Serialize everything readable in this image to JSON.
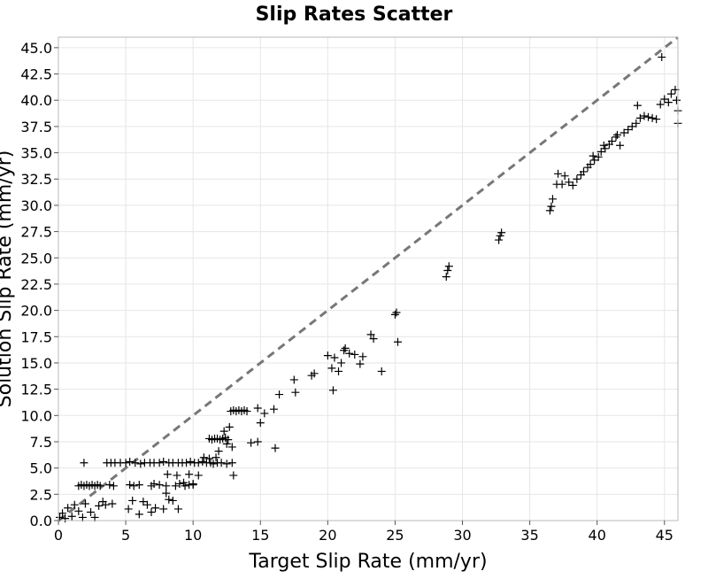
{
  "chart_data": {
    "type": "scatter",
    "title": "Slip Rates Scatter",
    "xlabel": "Target Slip Rate (mm/yr)",
    "ylabel": "Solution Slip Rate (mm/yr)",
    "xlim": [
      0,
      46
    ],
    "ylim": [
      0,
      46
    ],
    "x_ticks": [
      0,
      5,
      10,
      15,
      20,
      25,
      30,
      35,
      40,
      45
    ],
    "x_tick_labels": [
      "0",
      "5",
      "10",
      "15",
      "20",
      "25",
      "30",
      "35",
      "40",
      "45"
    ],
    "y_ticks": [
      0,
      2.5,
      5,
      7.5,
      10,
      12.5,
      15,
      17.5,
      20,
      22.5,
      25,
      27.5,
      30,
      32.5,
      35,
      37.5,
      40,
      42.5,
      45
    ],
    "y_tick_labels": [
      "0.0",
      "2.5",
      "5.0",
      "7.5",
      "10.0",
      "12.5",
      "15.0",
      "17.5",
      "20.0",
      "22.5",
      "25.0",
      "27.5",
      "30.0",
      "32.5",
      "35.0",
      "37.5",
      "40.0",
      "42.5",
      "45.0"
    ],
    "grid": true,
    "marker": "+",
    "marker_color": "#000000",
    "reference_line": {
      "style": "dashed",
      "color": "#777777",
      "x": [
        0,
        46
      ],
      "y": [
        0,
        46
      ]
    },
    "series": [
      {
        "points": [
          [
            0.1,
            0.3
          ],
          [
            0.3,
            0.7
          ],
          [
            0.5,
            0.2
          ],
          [
            0.7,
            1.2
          ],
          [
            1.0,
            0.4
          ],
          [
            1.2,
            1.5
          ],
          [
            1.5,
            0.9
          ],
          [
            1.8,
            0.3
          ],
          [
            2.0,
            1.6
          ],
          [
            2.4,
            0.8
          ],
          [
            2.7,
            0.3
          ],
          [
            3.0,
            1.4
          ],
          [
            3.3,
            1.8
          ],
          [
            1.5,
            3.3
          ],
          [
            1.7,
            3.4
          ],
          [
            1.9,
            3.3
          ],
          [
            2.1,
            3.4
          ],
          [
            2.3,
            3.3
          ],
          [
            2.5,
            3.4
          ],
          [
            2.7,
            3.3
          ],
          [
            2.9,
            3.4
          ],
          [
            3.1,
            3.3
          ],
          [
            3.8,
            3.4
          ],
          [
            4.1,
            3.3
          ],
          [
            5.3,
            3.4
          ],
          [
            5.6,
            3.3
          ],
          [
            6.0,
            3.4
          ],
          [
            6.9,
            3.3
          ],
          [
            7.1,
            3.5
          ],
          [
            7.5,
            3.4
          ],
          [
            8.0,
            3.3
          ],
          [
            8.7,
            3.3
          ],
          [
            9.0,
            3.5
          ],
          [
            9.4,
            3.3
          ],
          [
            9.7,
            3.4
          ],
          [
            10.0,
            3.4
          ],
          [
            1.9,
            5.5
          ],
          [
            3.6,
            5.5
          ],
          [
            3.9,
            5.5
          ],
          [
            4.2,
            5.5
          ],
          [
            4.6,
            5.5
          ],
          [
            5.0,
            5.5
          ],
          [
            5.3,
            5.6
          ],
          [
            5.7,
            5.5
          ],
          [
            6.1,
            5.4
          ],
          [
            6.4,
            5.5
          ],
          [
            6.8,
            5.5
          ],
          [
            7.1,
            5.5
          ],
          [
            7.5,
            5.5
          ],
          [
            7.8,
            5.6
          ],
          [
            8.2,
            5.5
          ],
          [
            8.5,
            5.5
          ],
          [
            8.9,
            5.5
          ],
          [
            9.2,
            5.5
          ],
          [
            9.5,
            5.5
          ],
          [
            9.8,
            5.6
          ],
          [
            10.1,
            5.5
          ],
          [
            10.4,
            5.5
          ],
          [
            10.7,
            5.6
          ],
          [
            11.0,
            5.5
          ],
          [
            11.3,
            5.5
          ],
          [
            11.5,
            5.4
          ],
          [
            11.8,
            5.5
          ],
          [
            12.1,
            5.5
          ],
          [
            12.5,
            5.4
          ],
          [
            12.9,
            5.5
          ],
          [
            3.5,
            1.5
          ],
          [
            4.0,
            1.6
          ],
          [
            5.2,
            1.1
          ],
          [
            5.5,
            1.9
          ],
          [
            6.0,
            0.6
          ],
          [
            6.3,
            1.8
          ],
          [
            6.6,
            1.5
          ],
          [
            6.9,
            0.8
          ],
          [
            7.2,
            1.2
          ],
          [
            7.8,
            1.1
          ],
          [
            8.2,
            2.0
          ],
          [
            8.5,
            1.9
          ],
          [
            8.9,
            1.1
          ],
          [
            8.0,
            2.6
          ],
          [
            8.1,
            4.4
          ],
          [
            8.8,
            4.3
          ],
          [
            9.3,
            3.6
          ],
          [
            9.7,
            4.4
          ],
          [
            10.0,
            3.5
          ],
          [
            10.4,
            4.3
          ],
          [
            10.8,
            6.0
          ],
          [
            11.2,
            5.9
          ],
          [
            11.2,
            7.8
          ],
          [
            11.4,
            7.7
          ],
          [
            11.6,
            7.8
          ],
          [
            11.8,
            7.8
          ],
          [
            12.0,
            7.7
          ],
          [
            12.2,
            7.8
          ],
          [
            12.4,
            7.9
          ],
          [
            12.6,
            7.7
          ],
          [
            12.3,
            8.5
          ],
          [
            12.7,
            8.9
          ],
          [
            12.5,
            7.3
          ],
          [
            12.9,
            7.0
          ],
          [
            13.0,
            4.3
          ],
          [
            11.7,
            6.0
          ],
          [
            11.9,
            6.6
          ],
          [
            12.8,
            10.4
          ],
          [
            13.0,
            10.5
          ],
          [
            13.2,
            10.4
          ],
          [
            13.4,
            10.5
          ],
          [
            13.6,
            10.4
          ],
          [
            13.8,
            10.5
          ],
          [
            14.0,
            10.4
          ],
          [
            14.3,
            7.4
          ],
          [
            15.0,
            9.3
          ],
          [
            14.8,
            7.5
          ],
          [
            14.8,
            10.7
          ],
          [
            15.3,
            10.2
          ],
          [
            16.0,
            10.6
          ],
          [
            16.4,
            12.0
          ],
          [
            17.5,
            13.4
          ],
          [
            17.6,
            12.2
          ],
          [
            16.1,
            6.9
          ],
          [
            18.8,
            13.8
          ],
          [
            19.0,
            14.0
          ],
          [
            20.0,
            15.7
          ],
          [
            20.3,
            14.5
          ],
          [
            20.5,
            15.5
          ],
          [
            20.4,
            12.4
          ],
          [
            20.8,
            14.2
          ],
          [
            21.0,
            15.0
          ],
          [
            21.2,
            16.2
          ],
          [
            21.3,
            16.4
          ],
          [
            21.6,
            15.9
          ],
          [
            22.0,
            15.8
          ],
          [
            22.4,
            14.9
          ],
          [
            22.6,
            15.6
          ],
          [
            23.2,
            17.7
          ],
          [
            23.4,
            17.3
          ],
          [
            24.0,
            14.2
          ],
          [
            25.0,
            19.6
          ],
          [
            25.1,
            19.8
          ],
          [
            25.2,
            17.0
          ],
          [
            28.8,
            23.2
          ],
          [
            28.9,
            23.8
          ],
          [
            29.0,
            24.2
          ],
          [
            32.7,
            26.7
          ],
          [
            32.8,
            27.1
          ],
          [
            32.9,
            27.4
          ],
          [
            36.5,
            29.5
          ],
          [
            36.6,
            29.9
          ],
          [
            36.7,
            30.6
          ],
          [
            37.0,
            32.0
          ],
          [
            37.1,
            33.0
          ],
          [
            37.4,
            32.0
          ],
          [
            37.6,
            32.8
          ],
          [
            37.9,
            32.2
          ],
          [
            38.2,
            31.9
          ],
          [
            38.5,
            32.5
          ],
          [
            38.8,
            32.9
          ],
          [
            39.0,
            33.2
          ],
          [
            39.3,
            33.6
          ],
          [
            39.5,
            33.9
          ],
          [
            39.8,
            34.3
          ],
          [
            40.1,
            34.6
          ],
          [
            40.3,
            35.1
          ],
          [
            40.6,
            35.4
          ],
          [
            40.9,
            35.8
          ],
          [
            41.1,
            36.1
          ],
          [
            41.4,
            36.5
          ],
          [
            41.7,
            35.7
          ],
          [
            42.0,
            36.9
          ],
          [
            42.3,
            37.2
          ],
          [
            42.6,
            37.5
          ],
          [
            42.9,
            37.8
          ],
          [
            43.2,
            38.3
          ],
          [
            43.5,
            38.5
          ],
          [
            43.8,
            38.4
          ],
          [
            44.1,
            38.3
          ],
          [
            44.4,
            38.2
          ],
          [
            44.7,
            39.6
          ],
          [
            45.0,
            40.1
          ],
          [
            45.3,
            39.8
          ],
          [
            45.5,
            40.6
          ],
          [
            45.8,
            41.0
          ],
          [
            46.0,
            39.0
          ],
          [
            46.0,
            37.8
          ],
          [
            44.8,
            44.1
          ],
          [
            45.9,
            40.0
          ],
          [
            43.0,
            39.5
          ],
          [
            41.5,
            36.7
          ],
          [
            40.5,
            35.7
          ],
          [
            39.7,
            34.7
          ]
        ]
      }
    ]
  }
}
